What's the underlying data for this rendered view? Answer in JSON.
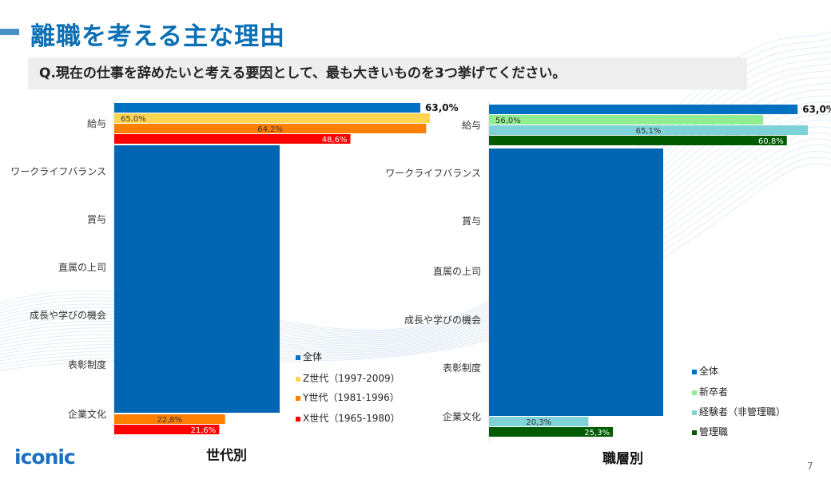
{
  "header": {
    "title": "離職を考える主な理由",
    "question": "Q.現在の仕事を辞めたいと考える要因として、最も大きいものを3つ挙げてください。"
  },
  "footer": {
    "logo": "iconic",
    "page_number": "7"
  },
  "chart_data": [
    {
      "type": "bar",
      "orientation": "horizontal",
      "title": "世代別",
      "categories": [
        "給与",
        "ワークライフバランス",
        "賞与",
        "直属の上司",
        "成長や学びの機会",
        "表彰制度",
        "企業文化"
      ],
      "series": [
        {
          "name": "全体",
          "color": "#0070c0",
          "values": [
            63.0,
            null,
            null,
            null,
            null,
            null,
            null
          ]
        },
        {
          "name": "Z世代（1997-2009）",
          "color": "#ffd54f",
          "values": [
            65.0,
            null,
            null,
            null,
            null,
            null,
            null
          ]
        },
        {
          "name": "Y世代（1981-1996）",
          "color": "#ff7f00",
          "values": [
            64.2,
            null,
            null,
            null,
            null,
            null,
            22.8
          ]
        },
        {
          "name": "X世代（1965-1980）",
          "color": "#ff0000",
          "values": [
            48.6,
            null,
            null,
            null,
            null,
            null,
            21.6
          ]
        }
      ],
      "data_labels": [
        [
          "63,0%",
          null,
          null,
          null,
          null,
          null,
          null
        ],
        [
          "65,0%",
          null,
          null,
          null,
          null,
          null,
          null
        ],
        [
          "64,2%",
          null,
          null,
          null,
          null,
          null,
          "22,8%"
        ],
        [
          "48,6%",
          null,
          null,
          null,
          null,
          null,
          "21,6%"
        ]
      ],
      "legend": "right",
      "grid": false
    },
    {
      "type": "bar",
      "orientation": "horizontal",
      "title": "職層別",
      "categories": [
        "給与",
        "ワークライフバランス",
        "賞与",
        "直属の上司",
        "成長や学びの機会",
        "表彰制度",
        "企業文化"
      ],
      "series": [
        {
          "name": "全体",
          "color": "#0070c0",
          "values": [
            63.0,
            null,
            null,
            null,
            null,
            null,
            null
          ]
        },
        {
          "name": "新卒者",
          "color": "#90ee90",
          "values": [
            56.0,
            null,
            null,
            null,
            null,
            null,
            null
          ]
        },
        {
          "name": "経験者（非管理職）",
          "color": "#7fd3d8",
          "values": [
            65.1,
            null,
            null,
            null,
            null,
            null,
            20.3
          ]
        },
        {
          "name": "管理職",
          "color": "#005a00",
          "values": [
            60.8,
            null,
            null,
            null,
            null,
            null,
            25.3
          ]
        }
      ],
      "data_labels": [
        [
          "63,0%",
          null,
          null,
          null,
          null,
          null,
          null
        ],
        [
          "56,0%",
          null,
          null,
          null,
          null,
          null,
          null
        ],
        [
          "65,1%",
          null,
          null,
          null,
          null,
          null,
          "20,3%"
        ],
        [
          "60,8%",
          null,
          null,
          null,
          null,
          null,
          "25,3%"
        ]
      ],
      "legend": "right",
      "grid": false
    }
  ],
  "overlay_color": "#0066b3"
}
